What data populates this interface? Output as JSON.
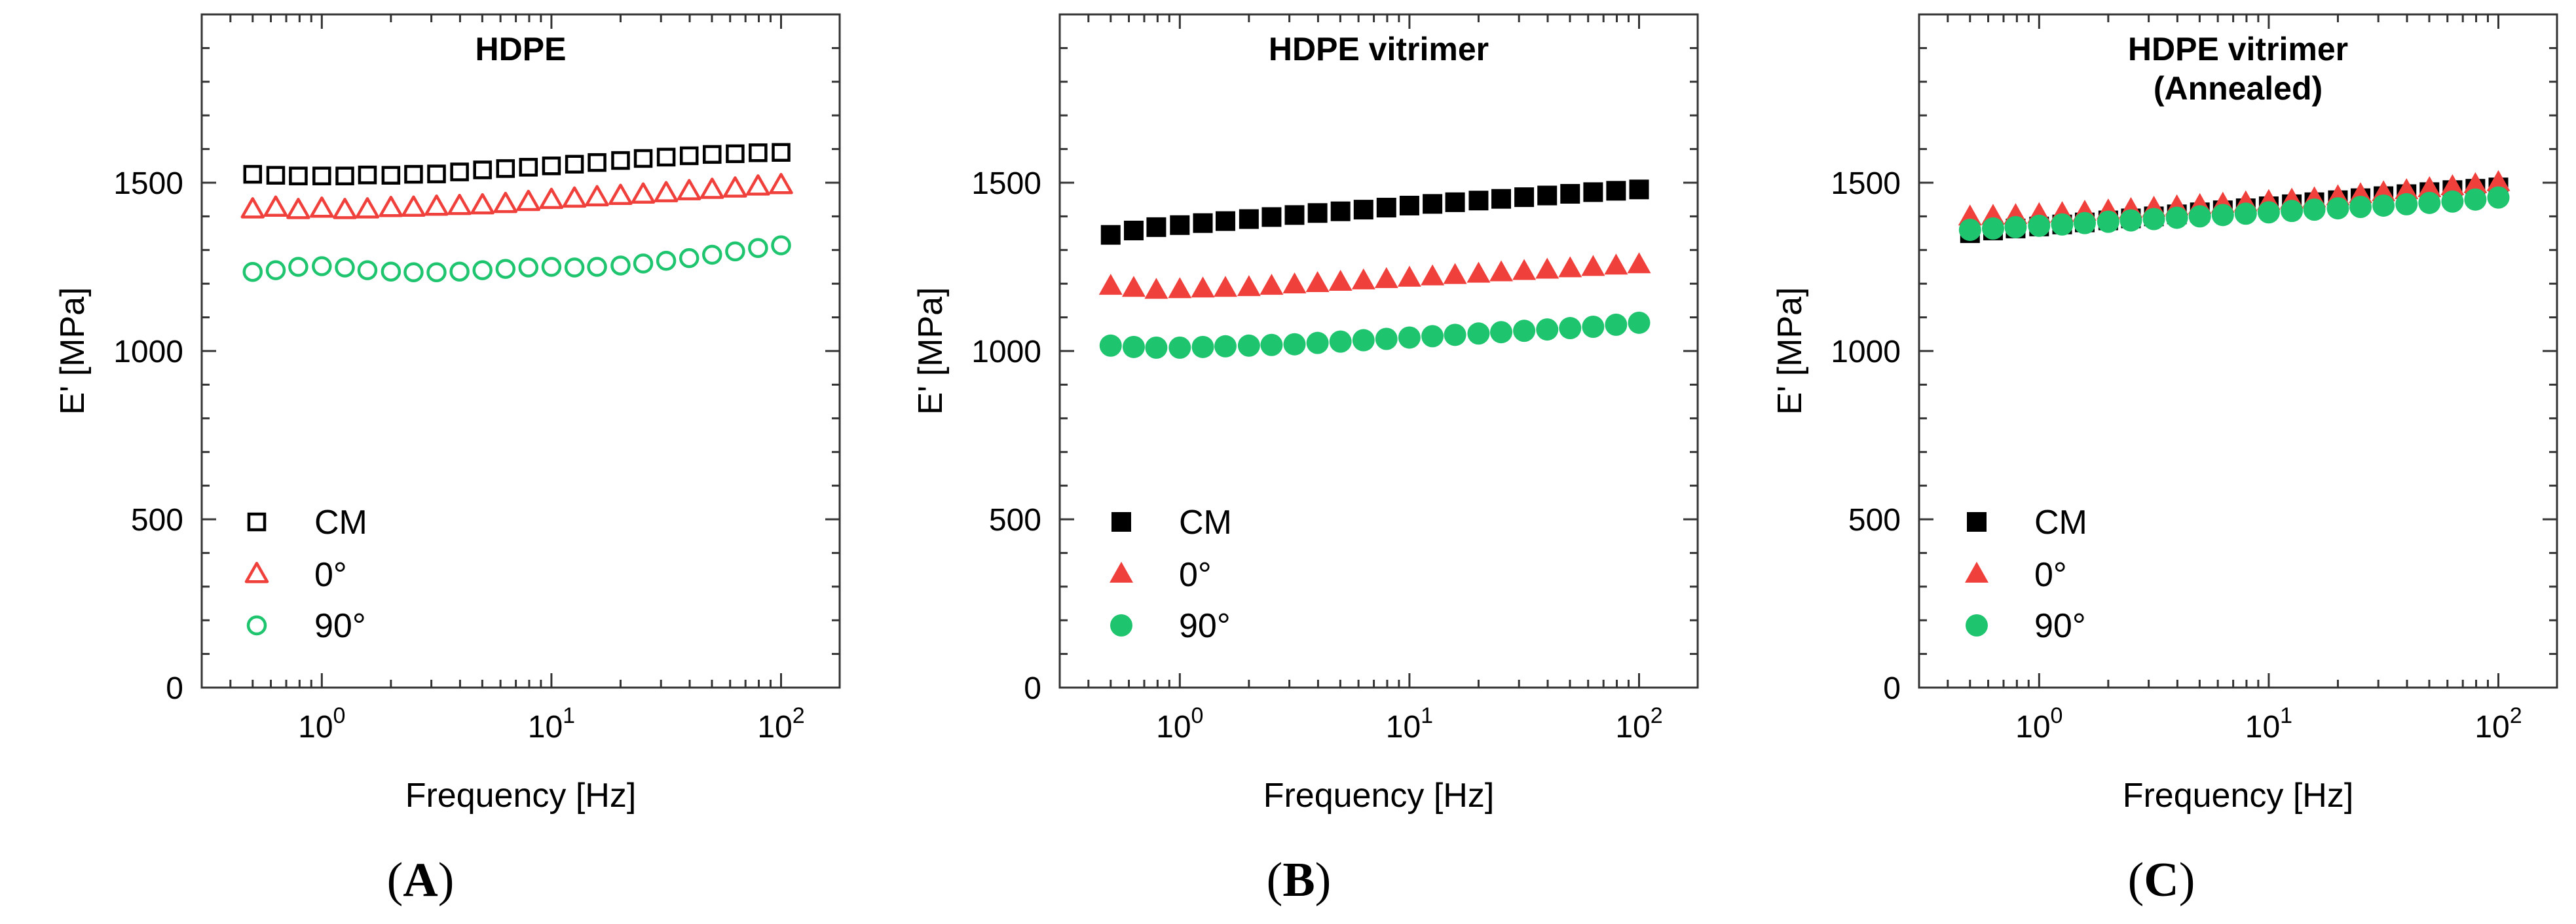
{
  "chart_data": [
    {
      "type": "scatter",
      "panel_label_prefix": "(",
      "panel_label": "A",
      "panel_label_suffix": ")",
      "title_lines": [
        "HDPE"
      ],
      "xlabel": "Frequency [Hz]",
      "ylabel": "E' [MPa]",
      "xscale": "log",
      "xlim": [
        0.3,
        180
      ],
      "ylim": [
        0,
        2000
      ],
      "yticks": [
        "0",
        "500",
        "1000",
        "1500"
      ],
      "xticks": [
        {
          "base": "10",
          "exp": "0"
        },
        {
          "base": "10",
          "exp": "1"
        },
        {
          "base": "10",
          "exp": "2"
        }
      ],
      "marker_fill": "hollow",
      "series": [
        {
          "name": "CM",
          "marker": "square",
          "color": "#000000",
          "x": [
            0.5,
            0.63,
            0.79,
            1.0,
            1.26,
            1.58,
            2.0,
            2.51,
            3.16,
            3.98,
            5.01,
            6.31,
            7.94,
            10.0,
            12.6,
            15.8,
            20.0,
            25.1,
            31.6,
            39.8,
            50.1,
            63.1,
            79.4,
            100
          ],
          "y": [
            1525,
            1522,
            1520,
            1520,
            1520,
            1523,
            1522,
            1525,
            1526,
            1532,
            1538,
            1542,
            1546,
            1550,
            1555,
            1560,
            1566,
            1572,
            1576,
            1580,
            1584,
            1586,
            1589,
            1590
          ]
        },
        {
          "name": "0°",
          "marker": "triangle",
          "color": "#f0403c",
          "x": [
            0.5,
            0.63,
            0.79,
            1.0,
            1.26,
            1.58,
            2.0,
            2.51,
            3.16,
            3.98,
            5.01,
            6.31,
            7.94,
            10.0,
            12.6,
            15.8,
            20.0,
            25.1,
            31.6,
            39.8,
            50.1,
            63.1,
            79.4,
            100
          ],
          "y": [
            1420,
            1425,
            1418,
            1422,
            1418,
            1420,
            1424,
            1425,
            1428,
            1430,
            1432,
            1436,
            1442,
            1448,
            1452,
            1456,
            1460,
            1464,
            1468,
            1474,
            1478,
            1482,
            1488,
            1492
          ]
        },
        {
          "name": "90°",
          "marker": "circle",
          "color": "#1fc46e",
          "x": [
            0.5,
            0.63,
            0.79,
            1.0,
            1.26,
            1.58,
            2.0,
            2.51,
            3.16,
            3.98,
            5.01,
            6.31,
            7.94,
            10.0,
            12.6,
            15.8,
            20.0,
            25.1,
            31.6,
            39.8,
            50.1,
            63.1,
            79.4,
            100
          ],
          "y": [
            1235,
            1240,
            1250,
            1252,
            1248,
            1240,
            1236,
            1234,
            1234,
            1236,
            1240,
            1244,
            1248,
            1250,
            1248,
            1250,
            1254,
            1260,
            1268,
            1276,
            1286,
            1296,
            1306,
            1314
          ]
        }
      ]
    },
    {
      "type": "scatter",
      "panel_label_prefix": "(",
      "panel_label": "B",
      "panel_label_suffix": ")",
      "title_lines": [
        "HDPE vitrimer"
      ],
      "xlabel": "Frequency [Hz]",
      "ylabel": "E' [MPa]",
      "xscale": "log",
      "xlim": [
        0.3,
        180
      ],
      "ylim": [
        0,
        2000
      ],
      "yticks": [
        "0",
        "500",
        "1000",
        "1500"
      ],
      "xticks": [
        {
          "base": "10",
          "exp": "0"
        },
        {
          "base": "10",
          "exp": "1"
        },
        {
          "base": "10",
          "exp": "2"
        }
      ],
      "marker_fill": "filled",
      "series": [
        {
          "name": "CM",
          "marker": "square",
          "color": "#000000",
          "x": [
            0.5,
            0.63,
            0.79,
            1.0,
            1.26,
            1.58,
            2.0,
            2.51,
            3.16,
            3.98,
            5.01,
            6.31,
            7.94,
            10.0,
            12.6,
            15.8,
            20.0,
            25.1,
            31.6,
            39.8,
            50.1,
            63.1,
            79.4,
            100
          ],
          "y": [
            1345,
            1358,
            1368,
            1374,
            1380,
            1386,
            1392,
            1398,
            1404,
            1410,
            1415,
            1420,
            1426,
            1432,
            1437,
            1442,
            1447,
            1452,
            1457,
            1462,
            1467,
            1472,
            1476,
            1480
          ]
        },
        {
          "name": "0°",
          "marker": "triangle",
          "color": "#f0403c",
          "x": [
            0.5,
            0.63,
            0.79,
            1.0,
            1.26,
            1.58,
            2.0,
            2.51,
            3.16,
            3.98,
            5.01,
            6.31,
            7.94,
            10.0,
            12.6,
            15.8,
            20.0,
            25.1,
            31.6,
            39.8,
            50.1,
            63.1,
            79.4,
            100
          ],
          "y": [
            1192,
            1186,
            1180,
            1182,
            1184,
            1186,
            1188,
            1192,
            1196,
            1200,
            1204,
            1208,
            1212,
            1216,
            1220,
            1224,
            1228,
            1232,
            1236,
            1240,
            1244,
            1248,
            1252,
            1256
          ]
        },
        {
          "name": "90°",
          "marker": "circle",
          "color": "#1fc46e",
          "x": [
            0.5,
            0.63,
            0.79,
            1.0,
            1.26,
            1.58,
            2.0,
            2.51,
            3.16,
            3.98,
            5.01,
            6.31,
            7.94,
            10.0,
            12.6,
            15.8,
            20.0,
            25.1,
            31.6,
            39.8,
            50.1,
            63.1,
            79.4,
            100
          ],
          "y": [
            1016,
            1012,
            1010,
            1010,
            1012,
            1014,
            1016,
            1018,
            1020,
            1024,
            1028,
            1032,
            1036,
            1040,
            1044,
            1048,
            1052,
            1056,
            1060,
            1064,
            1068,
            1072,
            1078,
            1084
          ]
        }
      ]
    },
    {
      "type": "scatter",
      "panel_label_prefix": "(",
      "panel_label": "C",
      "panel_label_suffix": ")",
      "title_lines": [
        "HDPE vitrimer",
        "(Annealed)"
      ],
      "xlabel": "Frequency [Hz]",
      "ylabel": "E' [MPa]",
      "xscale": "log",
      "xlim": [
        0.3,
        180
      ],
      "ylim": [
        0,
        2000
      ],
      "yticks": [
        "0",
        "500",
        "1000",
        "1500"
      ],
      "xticks": [
        {
          "base": "10",
          "exp": "0"
        },
        {
          "base": "10",
          "exp": "1"
        },
        {
          "base": "10",
          "exp": "2"
        }
      ],
      "marker_fill": "filled",
      "series": [
        {
          "name": "CM",
          "marker": "square",
          "color": "#000000",
          "x": [
            0.5,
            0.63,
            0.79,
            1.0,
            1.26,
            1.58,
            2.0,
            2.51,
            3.16,
            3.98,
            5.01,
            6.31,
            7.94,
            10.0,
            12.6,
            15.8,
            20.0,
            25.1,
            31.6,
            39.8,
            50.1,
            63.1,
            79.4,
            100
          ],
          "y": [
            1350,
            1358,
            1364,
            1370,
            1376,
            1382,
            1388,
            1394,
            1400,
            1406,
            1412,
            1418,
            1424,
            1430,
            1436,
            1442,
            1448,
            1454,
            1460,
            1466,
            1472,
            1478,
            1482,
            1486
          ]
        },
        {
          "name": "0°",
          "marker": "triangle",
          "color": "#f0403c",
          "x": [
            0.5,
            0.63,
            0.79,
            1.0,
            1.26,
            1.58,
            2.0,
            2.51,
            3.16,
            3.98,
            5.01,
            6.31,
            7.94,
            10.0,
            12.6,
            15.8,
            20.0,
            25.1,
            31.6,
            39.8,
            50.1,
            63.1,
            79.4,
            100
          ],
          "y": [
            1398,
            1400,
            1402,
            1405,
            1408,
            1412,
            1416,
            1420,
            1424,
            1428,
            1432,
            1436,
            1440,
            1444,
            1448,
            1452,
            1458,
            1464,
            1470,
            1476,
            1482,
            1488,
            1494,
            1500
          ]
        },
        {
          "name": "90°",
          "marker": "circle",
          "color": "#1fc46e",
          "x": [
            0.5,
            0.63,
            0.79,
            1.0,
            1.26,
            1.58,
            2.0,
            2.51,
            3.16,
            3.98,
            5.01,
            6.31,
            7.94,
            10.0,
            12.6,
            15.8,
            20.0,
            25.1,
            31.6,
            39.8,
            50.1,
            63.1,
            79.4,
            100
          ],
          "y": [
            1360,
            1364,
            1368,
            1372,
            1376,
            1380,
            1384,
            1388,
            1392,
            1396,
            1400,
            1404,
            1408,
            1412,
            1416,
            1420,
            1424,
            1428,
            1432,
            1436,
            1440,
            1444,
            1450,
            1456
          ]
        }
      ]
    }
  ]
}
